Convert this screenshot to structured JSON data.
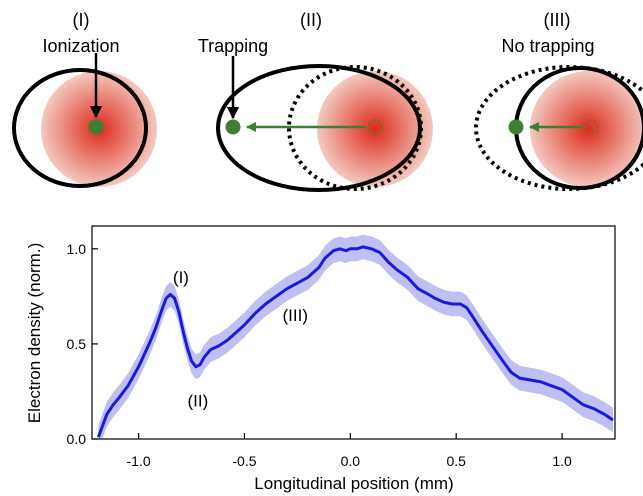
{
  "diagram": {
    "panels": [
      {
        "numeral": "(I)",
        "caption": "Ionization"
      },
      {
        "numeral": "(II)",
        "caption": "Trapping"
      },
      {
        "numeral": "(III)",
        "caption": "No trapping"
      }
    ],
    "colors": {
      "laser_center": "#dd2a1a",
      "laser_edge": "#f3c9c0",
      "electron": "#3f7d35",
      "outline": "#000000"
    }
  },
  "chart_data": {
    "type": "line",
    "title": "",
    "xlabel": "Longitudinal position (mm)",
    "ylabel": "Electron density (norm.)",
    "xlim": [
      -1.22,
      1.25
    ],
    "ylim": [
      0,
      1.12
    ],
    "xticks": [
      -1.0,
      -0.5,
      0.0,
      0.5,
      1.0
    ],
    "xtick_labels": [
      "-1.0",
      "-0.5",
      "0.0",
      "0.5",
      "1.0"
    ],
    "yticks": [
      0.0,
      0.5,
      1.0
    ],
    "ytick_labels": [
      "0.0",
      "0.5",
      "1.0"
    ],
    "grid": false,
    "line_color": "#1a1adf",
    "band_color": "#b4b4f2",
    "series": [
      {
        "x": [
          -1.19,
          -1.17,
          -1.15,
          -1.12,
          -1.09,
          -1.05,
          -1.0,
          -0.95,
          -0.92,
          -0.89,
          -0.87,
          -0.85,
          -0.83,
          -0.81,
          -0.79,
          -0.77,
          -0.75,
          -0.73,
          -0.71,
          -0.69,
          -0.66,
          -0.62,
          -0.58,
          -0.54,
          -0.5,
          -0.45,
          -0.4,
          -0.35,
          -0.3,
          -0.25,
          -0.2,
          -0.15,
          -0.12,
          -0.08,
          -0.05,
          -0.02,
          0.0,
          0.03,
          0.06,
          0.1,
          0.14,
          0.18,
          0.22,
          0.27,
          0.32,
          0.37,
          0.4,
          0.44,
          0.48,
          0.52,
          0.55,
          0.58,
          0.62,
          0.67,
          0.72,
          0.76,
          0.8,
          0.85,
          0.9,
          0.95,
          1.0,
          1.05,
          1.1,
          1.15,
          1.2,
          1.24
        ],
        "y": [
          0.01,
          0.07,
          0.13,
          0.18,
          0.22,
          0.28,
          0.38,
          0.5,
          0.58,
          0.68,
          0.74,
          0.76,
          0.74,
          0.67,
          0.57,
          0.48,
          0.41,
          0.38,
          0.39,
          0.43,
          0.47,
          0.49,
          0.52,
          0.56,
          0.6,
          0.66,
          0.71,
          0.75,
          0.79,
          0.82,
          0.85,
          0.9,
          0.95,
          0.99,
          1.0,
          0.99,
          1.0,
          1.0,
          1.01,
          1.0,
          0.98,
          0.93,
          0.89,
          0.85,
          0.79,
          0.76,
          0.74,
          0.72,
          0.71,
          0.71,
          0.69,
          0.64,
          0.57,
          0.49,
          0.41,
          0.35,
          0.32,
          0.31,
          0.3,
          0.28,
          0.26,
          0.22,
          0.18,
          0.16,
          0.13,
          0.1
        ],
        "uncertainty": 0.065
      }
    ],
    "annotations": [
      {
        "text": "(I)",
        "x": -0.8,
        "y": 0.82
      },
      {
        "text": "(II)",
        "x": -0.72,
        "y": 0.17
      },
      {
        "text": "(III)",
        "x": -0.26,
        "y": 0.62
      }
    ]
  }
}
